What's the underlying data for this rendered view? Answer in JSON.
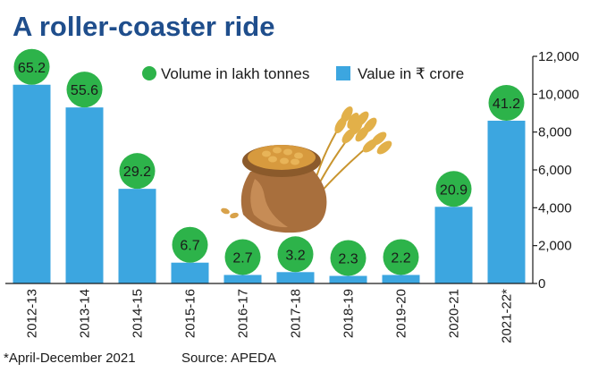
{
  "chart_data": {
    "type": "bar",
    "title": "A roller-coaster ride",
    "categories": [
      "2012-13",
      "2013-14",
      "2014-15",
      "2015-16",
      "2016-17",
      "2017-18",
      "2018-19",
      "2019-20",
      "2020-21",
      "2021-22*"
    ],
    "series": [
      {
        "name": "Value in ₹ crore",
        "kind": "bar",
        "color": "#3ca6e0",
        "values": [
          10500,
          9300,
          5000,
          1100,
          450,
          600,
          400,
          450,
          4050,
          8600
        ]
      },
      {
        "name": "Volume in lakh tonnes",
        "kind": "label",
        "color": "#2db34a",
        "values": [
          65.2,
          55.6,
          29.2,
          6.7,
          2.7,
          3.2,
          2.3,
          2.2,
          20.9,
          41.2
        ]
      }
    ],
    "y_axis": {
      "position": "right",
      "range": [
        0,
        12000
      ],
      "ticks": [
        0,
        2000,
        4000,
        6000,
        8000,
        10000,
        12000
      ],
      "tick_labels": [
        "0",
        "2,000",
        "4,000",
        "6,000",
        "8,000",
        "10,000",
        "12,000"
      ]
    },
    "legend": {
      "placement": "top-center",
      "items": [
        {
          "label": "Volume in lakh tonnes",
          "symbol": "circle",
          "color": "#2db34a"
        },
        {
          "label": "Value in ₹ crore",
          "symbol": "square",
          "color": "#3ca6e0"
        }
      ]
    },
    "grid": false
  },
  "footnote": "*April-December 2021",
  "source": "Source: APEDA",
  "illustration": "wheat-grain-sack-illustration"
}
